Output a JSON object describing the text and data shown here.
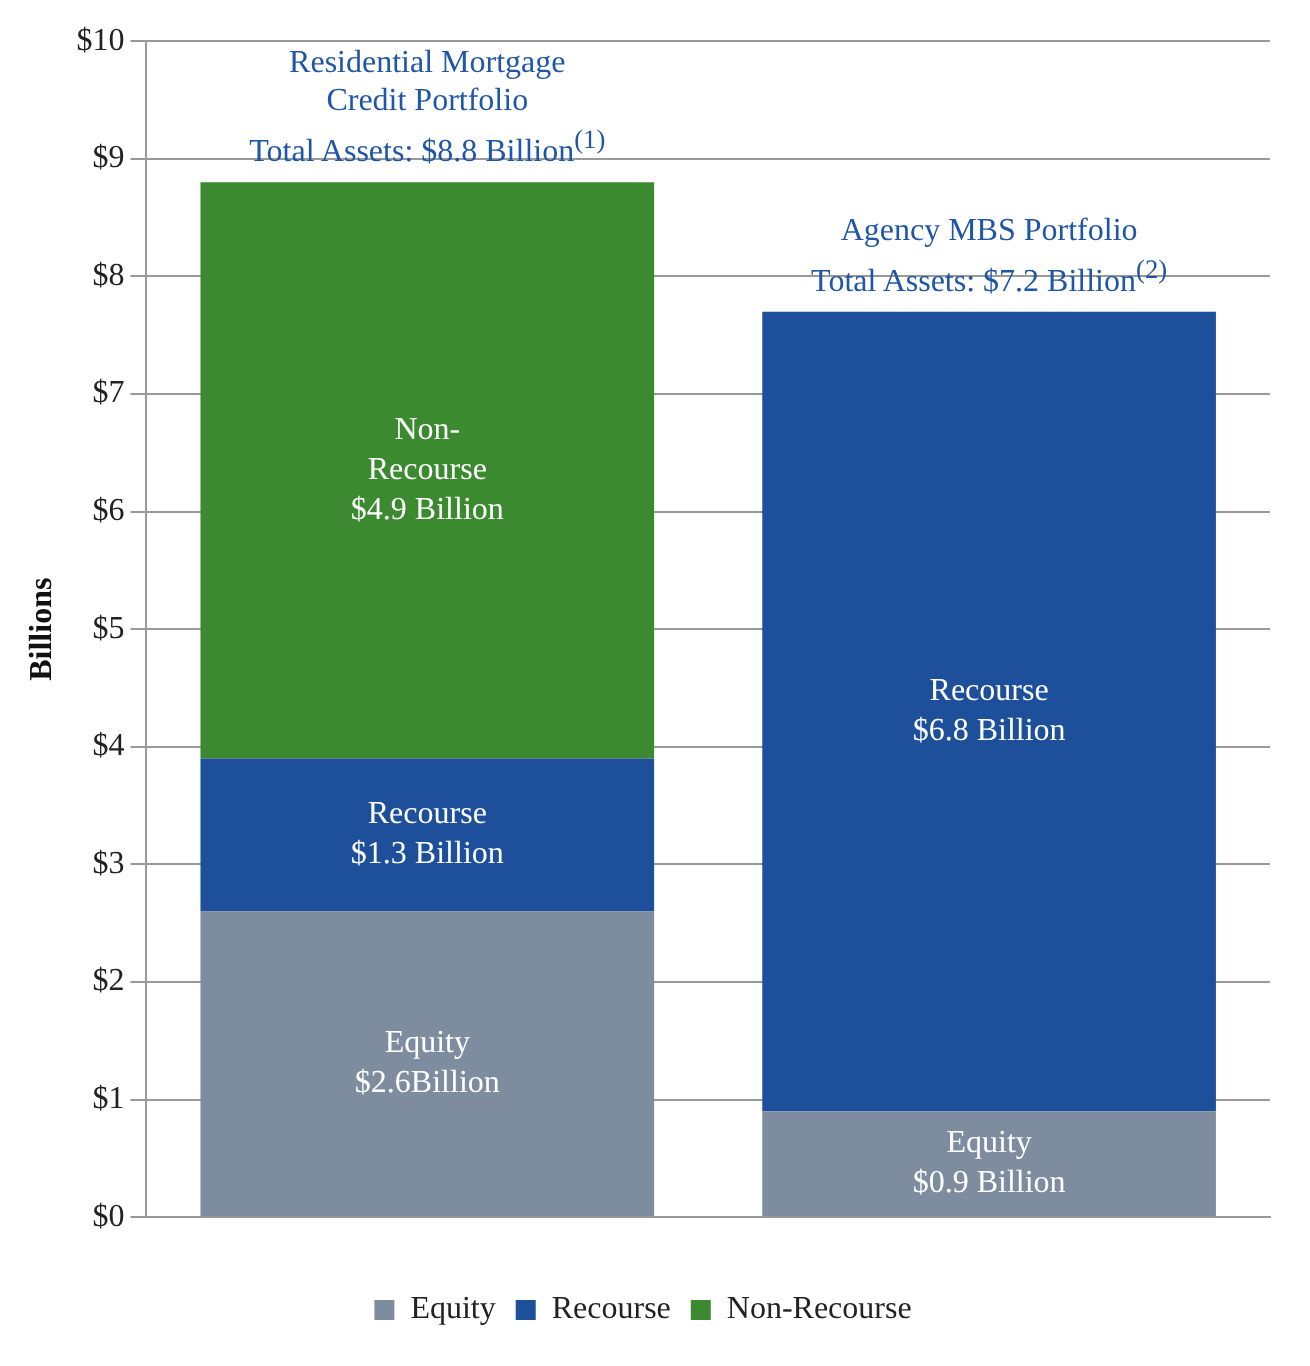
{
  "chart_data": {
    "type": "bar",
    "stacked": true,
    "ylabel": "Billions",
    "categories": [
      null,
      null
    ],
    "series": [
      {
        "name": "Equity",
        "color": "#7d8d9f",
        "values": [
          2.6,
          0.9
        ],
        "value_labels": [
          "Equity\n$2.6Billion",
          "Equity\n$0.9 Billion"
        ]
      },
      {
        "name": "Recourse",
        "color": "#1d4f9a",
        "values": [
          1.3,
          6.8
        ],
        "value_labels": [
          "Recourse\n$1.3 Billion",
          "Recourse\n$6.8 Billion"
        ]
      },
      {
        "name": "Non-Recourse",
        "color": "#3b8a2f",
        "values": [
          4.9,
          null
        ],
        "value_labels": [
          "Non-\nRecourse\n$4.9 Billion",
          null
        ]
      }
    ],
    "ylim": [
      0,
      10
    ],
    "yticks": [
      {
        "value": 0,
        "label": "$0"
      },
      {
        "value": 1,
        "label": "$1"
      },
      {
        "value": 2,
        "label": "$2"
      },
      {
        "value": 3,
        "label": "$3"
      },
      {
        "value": 4,
        "label": "$4"
      },
      {
        "value": 5,
        "label": "$5"
      },
      {
        "value": 6,
        "label": "$6"
      },
      {
        "value": 7,
        "label": "$7"
      },
      {
        "value": 8,
        "label": "$8"
      },
      {
        "value": 9,
        "label": "$9"
      },
      {
        "value": 10,
        "label": "$10"
      }
    ],
    "grid": "y",
    "legend": "bottom",
    "annotations": [
      "Residential Mortgage\nCredit Portfolio\nTotal Assets: $8.8 Billion$^{(1)}$",
      "Agency MBS Portfolio\nTotal Assets: $7.2 Billion$^{(2)}$"
    ]
  }
}
